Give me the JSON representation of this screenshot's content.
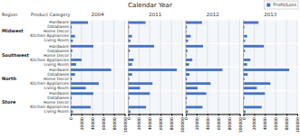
{
  "chart_data": {
    "type": "bar",
    "orientation": "horizontal",
    "title": "Calendar Year",
    "row_header": "Region",
    "category_header": "Product Category",
    "columns": [
      "2004",
      "2011",
      "2012",
      "2013"
    ],
    "rows": [
      "Midwest",
      "Southwest",
      "North",
      "Store"
    ],
    "categories": [
      "Hardware",
      "Databases",
      "Home Decor",
      "Kitchen Appliances",
      "Living Room"
    ],
    "series": [
      {
        "name": "Profit/Loss",
        "color": "#4472C4",
        "values": [
          [
            [
              32,
              2,
              1,
              8,
              4
            ],
            [
              32,
              2,
              1,
              7,
              4
            ],
            [
              30,
              2,
              1,
              9,
              4
            ],
            [
              28,
              2,
              1,
              7,
              3
            ]
          ],
          [
            [
              42,
              3,
              1,
              20,
              10
            ],
            [
              48,
              3,
              1,
              10,
              7
            ],
            [
              32,
              3,
              1,
              12,
              6
            ],
            [
              38,
              3,
              1,
              13,
              7
            ]
          ],
          [
            [
              75,
              8,
              2,
              52,
              28
            ],
            [
              90,
              7,
              2,
              45,
              22
            ],
            [
              68,
              7,
              2,
              46,
              22
            ],
            [
              85,
              8,
              2,
              50,
              25
            ]
          ],
          [
            [
              42,
              2,
              1,
              37,
              4
            ],
            [
              40,
              2,
              1,
              33,
              4
            ],
            [
              38,
              2,
              1,
              31,
              4
            ],
            [
              40,
              2,
              1,
              34,
              4
            ]
          ]
        ]
      }
    ],
    "xlim": [
      0,
      100
    ],
    "xticks": [
      0,
      {
        "value": 20,
        "label": "20000"
      },
      {
        "value": 40,
        "label": "40000"
      },
      {
        "value": 60,
        "label": "60000"
      },
      {
        "value": 80,
        "label": "80000"
      },
      {
        "value": 100,
        "label": "100000"
      }
    ],
    "grid": true,
    "legend": "upper right",
    "tick_labels": "x"
  }
}
